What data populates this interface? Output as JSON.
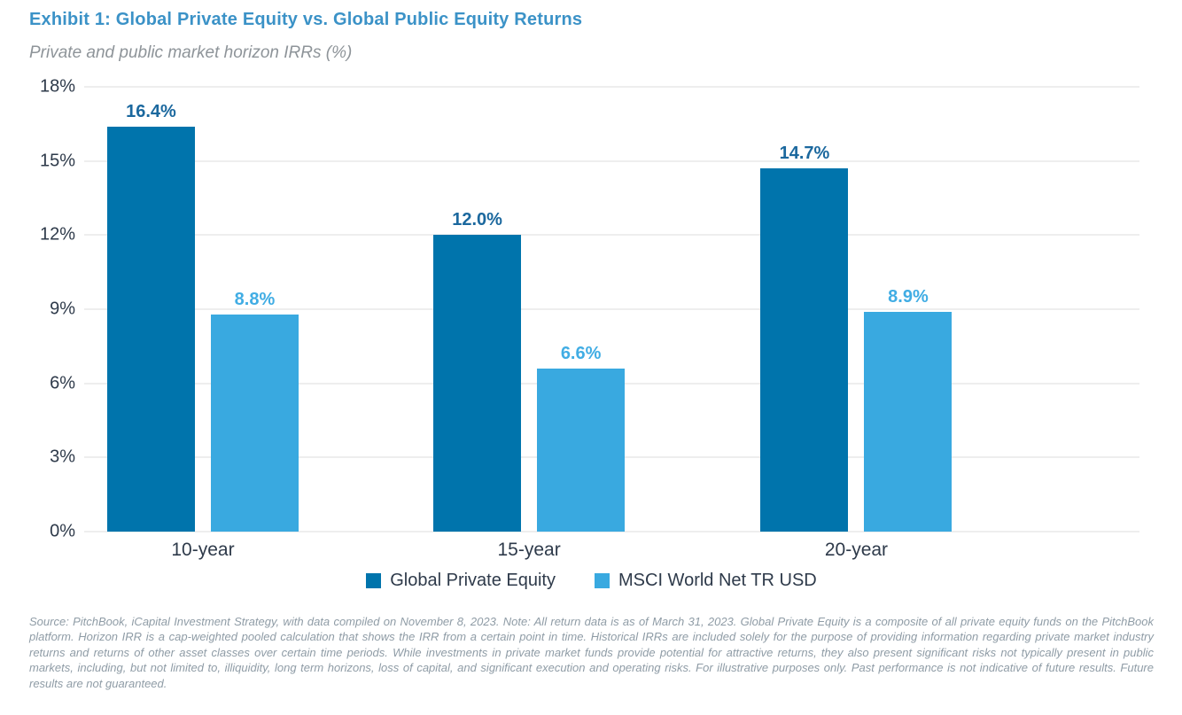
{
  "title": "Exhibit 1: Global Private Equity vs. Global Public Equity Returns",
  "subtitle": "Private and public market horizon IRRs (%)",
  "colors": {
    "title_blue": "#3B92C7",
    "subtitle_gray": "#8E9499",
    "axis_text": "#2E3A4A",
    "gridline": "#DCDCDC",
    "private_equity_bar": "#0074AC",
    "msci_bar": "#39A9E0",
    "private_equity_label": "#1B689E",
    "msci_label": "#41ADE4",
    "footer_text": "#8F9CA6"
  },
  "chart_data": {
    "type": "bar",
    "categories": [
      "10-year",
      "15-year",
      "20-year"
    ],
    "series": [
      {
        "name": "Global Private Equity",
        "values": [
          16.4,
          12.0,
          14.7
        ],
        "labels": [
          "16.4%",
          "12.0%",
          "14.7%"
        ],
        "color": "#0074AC",
        "label_color": "#1B689E"
      },
      {
        "name": "MSCI World Net TR USD",
        "values": [
          8.8,
          6.6,
          8.9
        ],
        "labels": [
          "8.8%",
          "6.6%",
          "8.9%"
        ],
        "color": "#39A9E0",
        "label_color": "#41ADE4"
      }
    ],
    "ylim": [
      0,
      18
    ],
    "yticks": [
      0,
      3,
      6,
      9,
      12,
      15,
      18
    ],
    "ytick_labels": [
      "0%",
      "3%",
      "6%",
      "9%",
      "12%",
      "15%",
      "18%"
    ],
    "grid": true,
    "legend_position": "bottom"
  },
  "legend": [
    {
      "label": "Global Private Equity",
      "color": "#0074AC"
    },
    {
      "label": "MSCI World Net TR USD",
      "color": "#39A9E0"
    }
  ],
  "footer": "Source: PitchBook, iCapital Investment Strategy, with data compiled on November 8, 2023. Note: All return data is as of March 31, 2023. Global Private Equity is a composite of all private equity funds on the PitchBook platform. Horizon IRR is a cap-weighted pooled calculation that shows the IRR from a certain point in time. Historical IRRs are included solely for the purpose of providing information regarding private market industry returns and returns of other asset classes over certain time periods. While investments in private market funds provide potential for attractive returns, they also present significant risks not typically present in public markets, including, but not limited to, illiquidity, long term horizons, loss of capital, and significant execution and operating risks. For illustrative purposes only. Past performance is not indicative of future results. Future results are not guaranteed."
}
